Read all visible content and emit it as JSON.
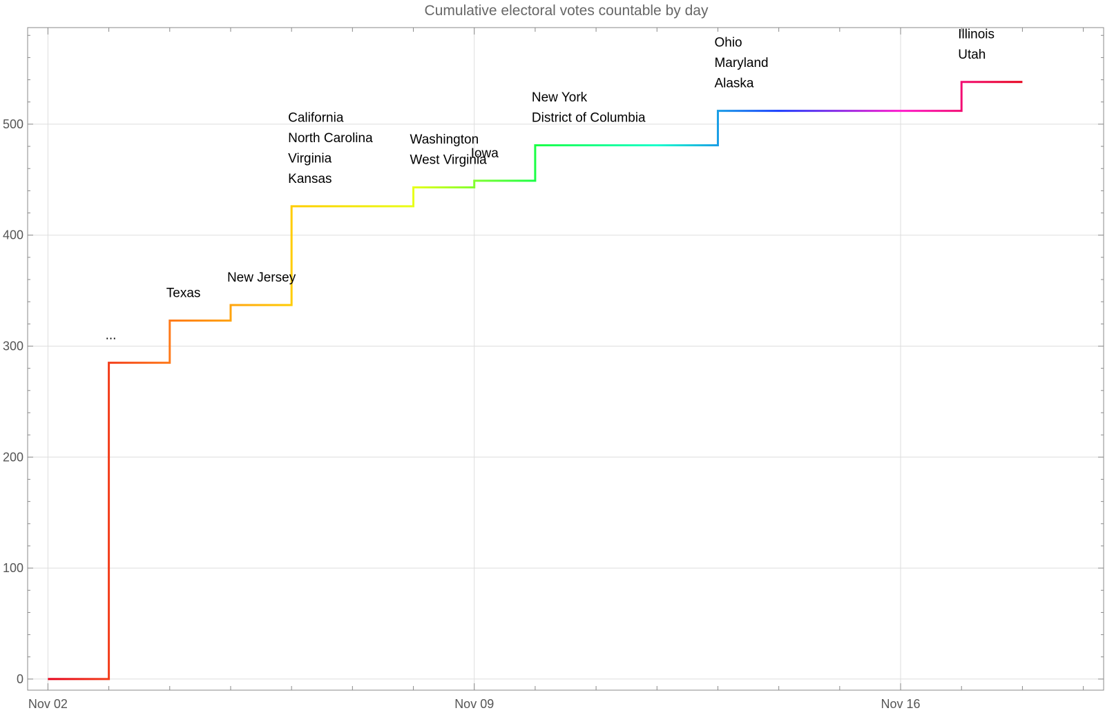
{
  "chart_data": {
    "type": "line",
    "step": true,
    "title": "Cumulative electoral votes countable by day",
    "xlabel": "",
    "ylabel": "",
    "x_ticks": [
      "Nov 02",
      "Nov 09",
      "Nov 16"
    ],
    "y_ticks": [
      0,
      100,
      200,
      300,
      400,
      500
    ],
    "xlim": [
      "Nov 01 16:00",
      "Nov 19 08:00"
    ],
    "ylim": [
      -10,
      587
    ],
    "grid": true,
    "line_color_gradient": [
      "#e6001a",
      "#ff7a1a",
      "#ffcc00",
      "#e8ff1a",
      "#1aff44",
      "#1affcc",
      "#1a3dff",
      "#ff1acc",
      "#e6001a"
    ],
    "series": [
      {
        "x": [
          "Nov 02",
          "Nov 03",
          "Nov 04",
          "Nov 05",
          "Nov 06",
          "Nov 07",
          "Nov 08",
          "Nov 09",
          "Nov 10",
          "Nov 11",
          "Nov 12",
          "Nov 13",
          "Nov 14",
          "Nov 15",
          "Nov 16",
          "Nov 17",
          "Nov 18"
        ],
        "y": [
          0,
          285,
          323,
          337,
          426,
          426,
          443,
          449,
          481,
          481,
          481,
          512,
          512,
          512,
          512,
          538,
          538
        ]
      }
    ],
    "annotations": [
      {
        "x": "Nov 03",
        "lines": [
          "..."
        ]
      },
      {
        "x": "Nov 04",
        "lines": [
          "Texas"
        ]
      },
      {
        "x": "Nov 05",
        "lines": [
          "New Jersey"
        ]
      },
      {
        "x": "Nov 06",
        "lines": [
          "California",
          "North Carolina",
          "Virginia",
          "Kansas"
        ]
      },
      {
        "x": "Nov 08",
        "lines": [
          "Washington",
          "West Virginia"
        ]
      },
      {
        "x": "Nov 09",
        "lines": [
          "Iowa"
        ]
      },
      {
        "x": "Nov 10",
        "lines": [
          "New York",
          "District of Columbia"
        ]
      },
      {
        "x": "Nov 13",
        "lines": [
          "Ohio",
          "Maryland",
          "Alaska"
        ]
      },
      {
        "x": "Nov 17",
        "lines": [
          "Illinois",
          "Utah"
        ]
      }
    ]
  }
}
